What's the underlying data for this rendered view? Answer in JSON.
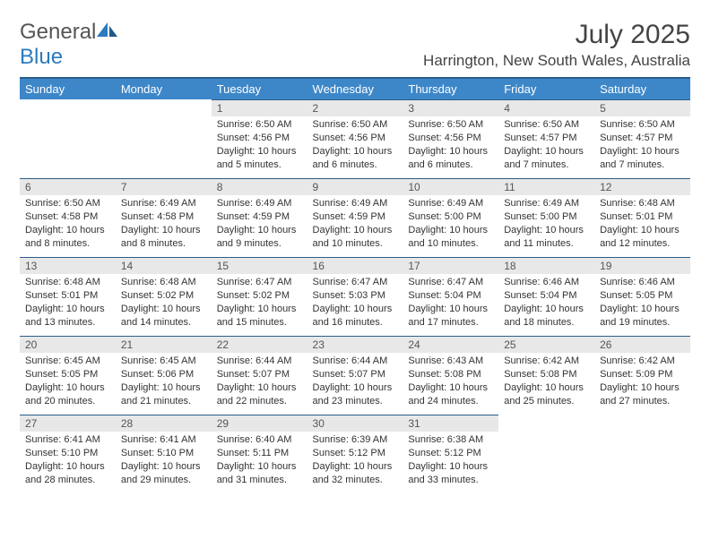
{
  "logo": {
    "text1": "General",
    "text2": "Blue"
  },
  "title": "July 2025",
  "location": "Harrington, New South Wales, Australia",
  "colors": {
    "header_bg": "#3d87c9",
    "header_border": "#2a5d8a",
    "daynum_bg": "#e8e8e8",
    "logo_blue": "#2b7bbf"
  },
  "dayHeaders": [
    "Sunday",
    "Monday",
    "Tuesday",
    "Wednesday",
    "Thursday",
    "Friday",
    "Saturday"
  ],
  "startOffset": 2,
  "days": [
    {
      "n": 1,
      "sr": "6:50 AM",
      "ss": "4:56 PM",
      "dl": "10 hours and 5 minutes."
    },
    {
      "n": 2,
      "sr": "6:50 AM",
      "ss": "4:56 PM",
      "dl": "10 hours and 6 minutes."
    },
    {
      "n": 3,
      "sr": "6:50 AM",
      "ss": "4:56 PM",
      "dl": "10 hours and 6 minutes."
    },
    {
      "n": 4,
      "sr": "6:50 AM",
      "ss": "4:57 PM",
      "dl": "10 hours and 7 minutes."
    },
    {
      "n": 5,
      "sr": "6:50 AM",
      "ss": "4:57 PM",
      "dl": "10 hours and 7 minutes."
    },
    {
      "n": 6,
      "sr": "6:50 AM",
      "ss": "4:58 PM",
      "dl": "10 hours and 8 minutes."
    },
    {
      "n": 7,
      "sr": "6:49 AM",
      "ss": "4:58 PM",
      "dl": "10 hours and 8 minutes."
    },
    {
      "n": 8,
      "sr": "6:49 AM",
      "ss": "4:59 PM",
      "dl": "10 hours and 9 minutes."
    },
    {
      "n": 9,
      "sr": "6:49 AM",
      "ss": "4:59 PM",
      "dl": "10 hours and 10 minutes."
    },
    {
      "n": 10,
      "sr": "6:49 AM",
      "ss": "5:00 PM",
      "dl": "10 hours and 10 minutes."
    },
    {
      "n": 11,
      "sr": "6:49 AM",
      "ss": "5:00 PM",
      "dl": "10 hours and 11 minutes."
    },
    {
      "n": 12,
      "sr": "6:48 AM",
      "ss": "5:01 PM",
      "dl": "10 hours and 12 minutes."
    },
    {
      "n": 13,
      "sr": "6:48 AM",
      "ss": "5:01 PM",
      "dl": "10 hours and 13 minutes."
    },
    {
      "n": 14,
      "sr": "6:48 AM",
      "ss": "5:02 PM",
      "dl": "10 hours and 14 minutes."
    },
    {
      "n": 15,
      "sr": "6:47 AM",
      "ss": "5:02 PM",
      "dl": "10 hours and 15 minutes."
    },
    {
      "n": 16,
      "sr": "6:47 AM",
      "ss": "5:03 PM",
      "dl": "10 hours and 16 minutes."
    },
    {
      "n": 17,
      "sr": "6:47 AM",
      "ss": "5:04 PM",
      "dl": "10 hours and 17 minutes."
    },
    {
      "n": 18,
      "sr": "6:46 AM",
      "ss": "5:04 PM",
      "dl": "10 hours and 18 minutes."
    },
    {
      "n": 19,
      "sr": "6:46 AM",
      "ss": "5:05 PM",
      "dl": "10 hours and 19 minutes."
    },
    {
      "n": 20,
      "sr": "6:45 AM",
      "ss": "5:05 PM",
      "dl": "10 hours and 20 minutes."
    },
    {
      "n": 21,
      "sr": "6:45 AM",
      "ss": "5:06 PM",
      "dl": "10 hours and 21 minutes."
    },
    {
      "n": 22,
      "sr": "6:44 AM",
      "ss": "5:07 PM",
      "dl": "10 hours and 22 minutes."
    },
    {
      "n": 23,
      "sr": "6:44 AM",
      "ss": "5:07 PM",
      "dl": "10 hours and 23 minutes."
    },
    {
      "n": 24,
      "sr": "6:43 AM",
      "ss": "5:08 PM",
      "dl": "10 hours and 24 minutes."
    },
    {
      "n": 25,
      "sr": "6:42 AM",
      "ss": "5:08 PM",
      "dl": "10 hours and 25 minutes."
    },
    {
      "n": 26,
      "sr": "6:42 AM",
      "ss": "5:09 PM",
      "dl": "10 hours and 27 minutes."
    },
    {
      "n": 27,
      "sr": "6:41 AM",
      "ss": "5:10 PM",
      "dl": "10 hours and 28 minutes."
    },
    {
      "n": 28,
      "sr": "6:41 AM",
      "ss": "5:10 PM",
      "dl": "10 hours and 29 minutes."
    },
    {
      "n": 29,
      "sr": "6:40 AM",
      "ss": "5:11 PM",
      "dl": "10 hours and 31 minutes."
    },
    {
      "n": 30,
      "sr": "6:39 AM",
      "ss": "5:12 PM",
      "dl": "10 hours and 32 minutes."
    },
    {
      "n": 31,
      "sr": "6:38 AM",
      "ss": "5:12 PM",
      "dl": "10 hours and 33 minutes."
    }
  ],
  "labels": {
    "sunrise": "Sunrise:",
    "sunset": "Sunset:",
    "daylight": "Daylight:"
  }
}
